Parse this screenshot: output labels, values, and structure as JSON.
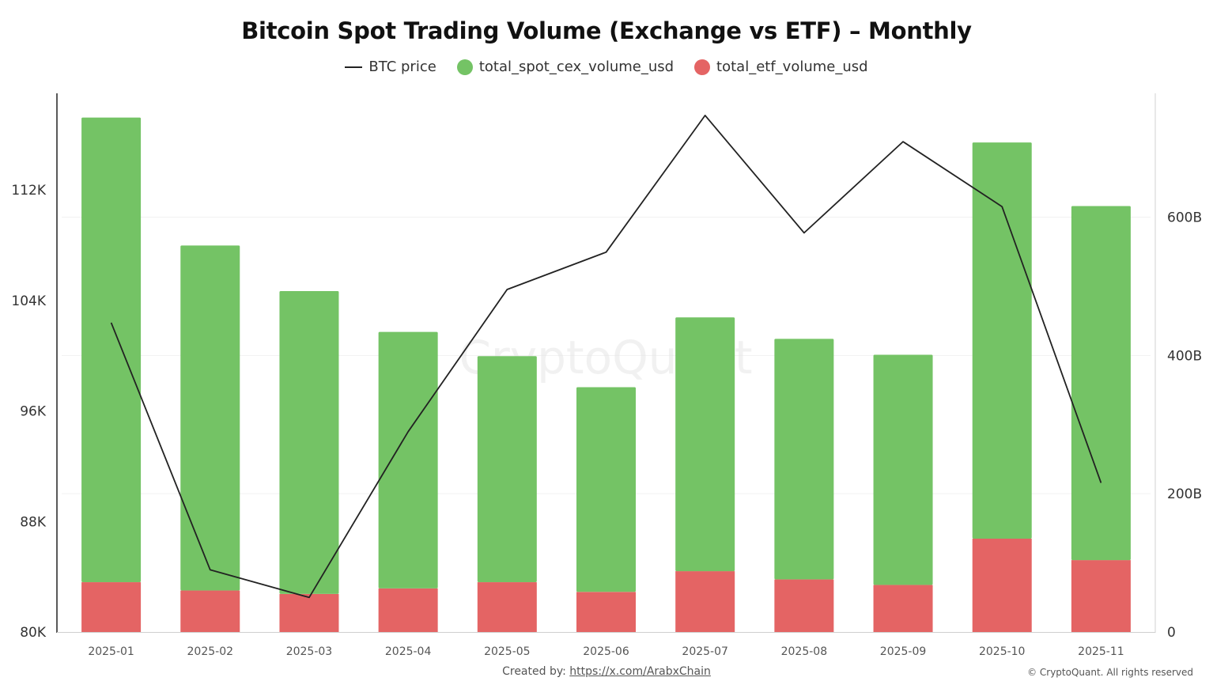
{
  "chart_data": {
    "type": "bar",
    "title": "Bitcoin Spot Trading Volume (Exchange vs ETF) – Monthly",
    "categories": [
      "2025-01",
      "2025-02",
      "2025-03",
      "2025-04",
      "2025-05",
      "2025-06",
      "2025-07",
      "2025-08",
      "2025-09",
      "2025-10",
      "2025-11"
    ],
    "stacked": true,
    "series": [
      {
        "name": "total_spot_cex_volume_usd",
        "axis": "right",
        "color": "#74c365",
        "values": [
          672,
          499,
          438,
          371,
          327,
          296,
          367,
          348,
          333,
          573,
          512
        ]
      },
      {
        "name": "total_etf_volume_usd",
        "axis": "right",
        "color": "#e46464",
        "values": [
          72,
          60,
          55,
          63,
          72,
          58,
          88,
          76,
          68,
          135,
          104
        ]
      },
      {
        "name": "BTC price",
        "type": "line",
        "axis": "left",
        "color": "#222222",
        "values": [
          102400,
          84500,
          82500,
          94500,
          104800,
          107500,
          117400,
          108900,
          115500,
          110800,
          90800
        ]
      }
    ],
    "yleft": {
      "ticks": [
        "112K",
        "104K",
        "96K",
        "88K",
        "80K"
      ],
      "tick_values": [
        112000,
        104000,
        96000,
        88000,
        80000
      ],
      "range": [
        80000,
        119000
      ]
    },
    "yright": {
      "ticks": [
        "600B",
        "400B",
        "200B",
        "0"
      ],
      "tick_values": [
        600,
        400,
        200,
        0
      ],
      "range": [
        0,
        779
      ]
    },
    "grid": true,
    "legend": "top-center",
    "watermark": "CryptoQuant"
  },
  "legend": {
    "line_label": "BTC price",
    "cex_label": "total_spot_cex_volume_usd",
    "etf_label": "total_etf_volume_usd"
  },
  "footer": {
    "created_by": "Created by:",
    "link": "https://x.com/ArabxChain",
    "copyright": "© CryptoQuant. All rights reserved"
  },
  "colors": {
    "cex": "#74c365",
    "etf": "#e46464",
    "line": "#222222"
  }
}
